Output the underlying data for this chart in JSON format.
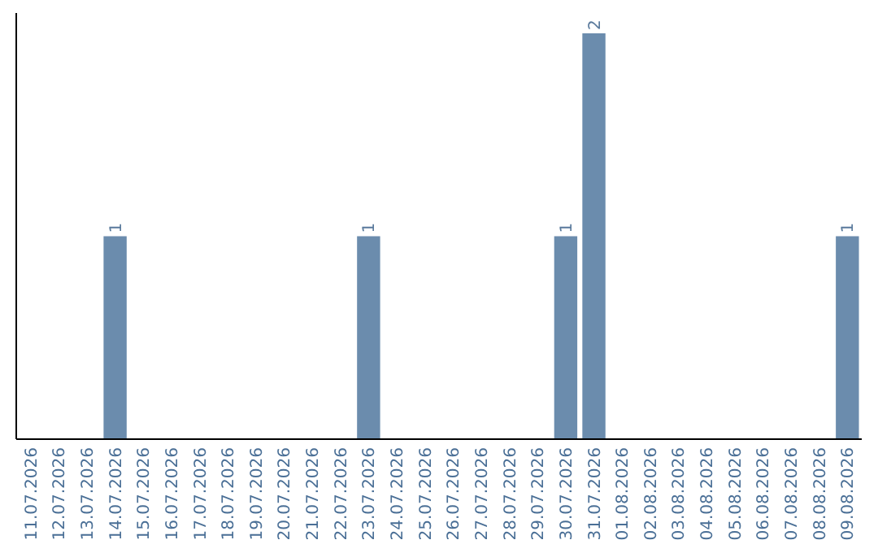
{
  "chart_data": {
    "type": "bar",
    "categories": [
      "11.07.2026",
      "12.07.2026",
      "13.07.2026",
      "14.07.2026",
      "15.07.2026",
      "16.07.2026",
      "17.07.2026",
      "18.07.2026",
      "19.07.2026",
      "20.07.2026",
      "21.07.2026",
      "22.07.2026",
      "23.07.2026",
      "24.07.2026",
      "25.07.2026",
      "26.07.2026",
      "27.07.2026",
      "28.07.2026",
      "29.07.2026",
      "30.07.2026",
      "31.07.2026",
      "01.08.2026",
      "02.08.2026",
      "03.08.2026",
      "04.08.2026",
      "05.08.2026",
      "06.08.2026",
      "07.08.2026",
      "08.08.2026",
      "09.08.2026"
    ],
    "values": [
      0,
      0,
      0,
      1,
      0,
      0,
      0,
      0,
      0,
      0,
      0,
      0,
      1,
      0,
      0,
      0,
      0,
      0,
      0,
      1,
      2,
      0,
      0,
      0,
      0,
      0,
      0,
      0,
      0,
      1
    ],
    "value_labels": [
      null,
      null,
      null,
      "1",
      null,
      null,
      null,
      null,
      null,
      null,
      null,
      null,
      "1",
      null,
      null,
      null,
      null,
      null,
      null,
      "1",
      "2",
      null,
      null,
      null,
      null,
      null,
      null,
      null,
      null,
      "1"
    ],
    "color": "#6b8cad",
    "ylim": [
      0,
      2.1
    ],
    "tick_labels": "x"
  }
}
